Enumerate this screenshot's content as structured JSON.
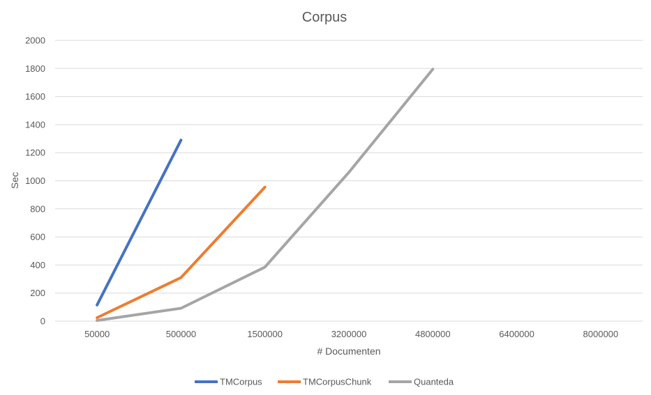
{
  "chart_data": {
    "type": "line",
    "title": "Corpus",
    "xlabel": "# Documenten",
    "ylabel": "Sec",
    "categories": [
      "50000",
      "500000",
      "1500000",
      "3200000",
      "4800000",
      "6400000",
      "8000000"
    ],
    "ylim": [
      0,
      2000
    ],
    "yticks": [
      0,
      200,
      400,
      600,
      800,
      1000,
      1200,
      1400,
      1600,
      1800,
      2000
    ],
    "grid": true,
    "legend_position": "bottom",
    "series": [
      {
        "name": "TMCorpus",
        "color": "#4472c4",
        "values": [
          115,
          1290,
          null,
          null,
          null,
          null,
          null
        ]
      },
      {
        "name": "TMCorpusChunk",
        "color": "#ed7d31",
        "values": [
          25,
          310,
          955,
          null,
          null,
          null,
          null
        ]
      },
      {
        "name": "Quanteda",
        "color": "#a5a5a5",
        "values": [
          5,
          92,
          385,
          1060,
          1795,
          null,
          null
        ]
      }
    ]
  }
}
